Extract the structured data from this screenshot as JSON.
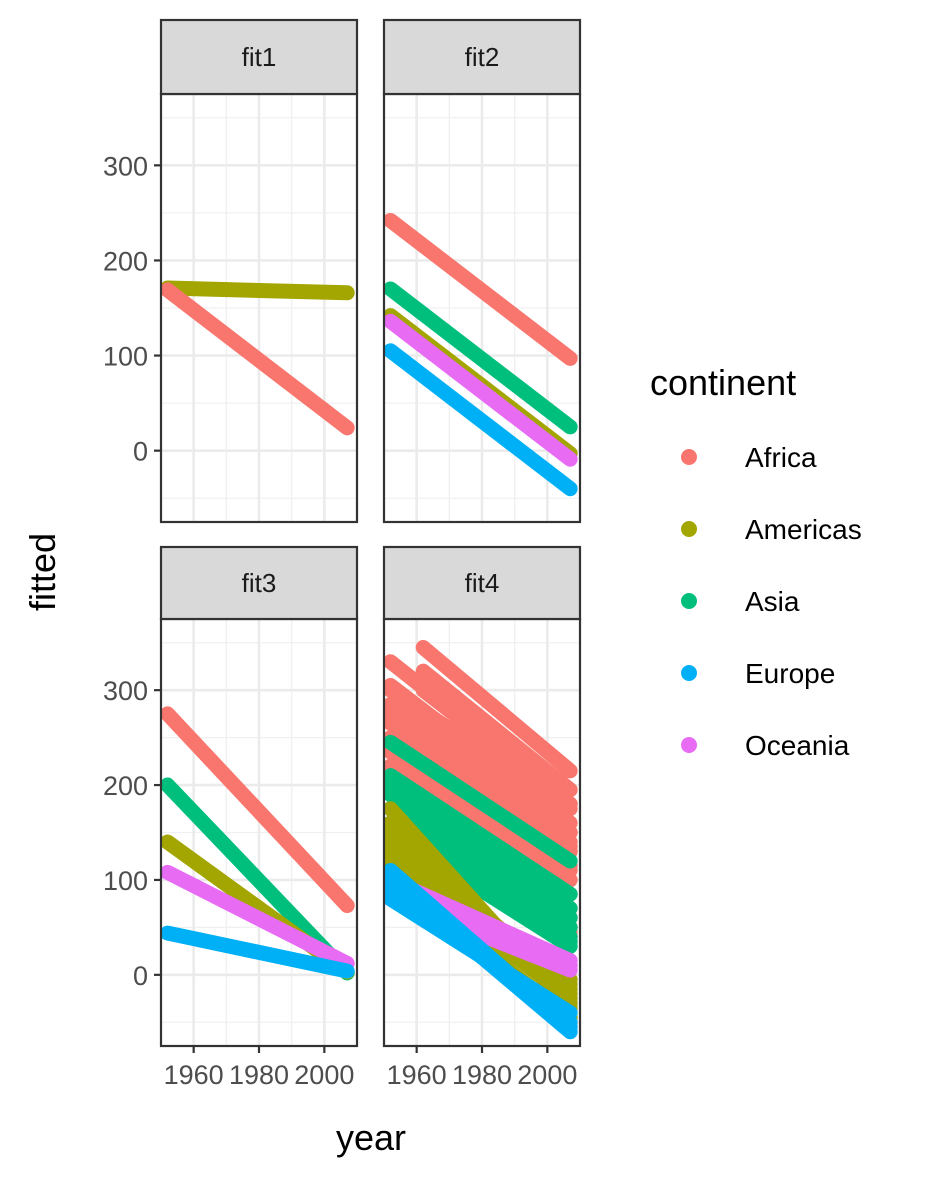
{
  "chart_data": {
    "type": "scatter",
    "xlabel": "year",
    "ylabel": "fitted",
    "xlim": [
      1950,
      2010
    ],
    "ylim": [
      -75,
      375
    ],
    "x_ticks": [
      1960,
      1980,
      2000
    ],
    "x_tick_labels": [
      "1960",
      "1980",
      "2000"
    ],
    "y_ticks": [
      0,
      100,
      200,
      300
    ],
    "y_tick_labels": [
      "0",
      "100",
      "200",
      "300"
    ],
    "grid": true,
    "facet_layout": "2x2",
    "legend": {
      "title": "continent",
      "position": "right",
      "entries": [
        {
          "name": "Africa",
          "color": "#F8766D"
        },
        {
          "name": "Americas",
          "color": "#A3A500"
        },
        {
          "name": "Asia",
          "color": "#00BF7D"
        },
        {
          "name": "Europe",
          "color": "#00B0F6"
        },
        {
          "name": "Oceania",
          "color": "#E76BF3"
        }
      ]
    },
    "x_range_data": [
      1952,
      2007
    ],
    "panels": [
      {
        "label": "fit1",
        "series": [
          {
            "continent": "Americas",
            "segments": [
              [
                171,
                166
              ]
            ]
          },
          {
            "continent": "Africa",
            "segments": [
              [
                169,
                24
              ]
            ]
          }
        ]
      },
      {
        "label": "fit2",
        "series": [
          {
            "continent": "Africa",
            "segments": [
              [
                242,
                97
              ]
            ]
          },
          {
            "continent": "Asia",
            "segments": [
              [
                170,
                25
              ]
            ]
          },
          {
            "continent": "Americas",
            "segments": [
              [
                142,
                -3
              ]
            ]
          },
          {
            "continent": "Oceania",
            "segments": [
              [
                136,
                -9
              ]
            ]
          },
          {
            "continent": "Europe",
            "segments": [
              [
                105,
                -40
              ]
            ]
          }
        ]
      },
      {
        "label": "fit3",
        "series": [
          {
            "continent": "Africa",
            "segments": [
              [
                275,
                73
              ]
            ]
          },
          {
            "continent": "Asia",
            "segments": [
              [
                200,
                2
              ]
            ]
          },
          {
            "continent": "Americas",
            "segments": [
              [
                140,
                3
              ]
            ]
          },
          {
            "continent": "Oceania",
            "segments": [
              [
                108,
                12
              ]
            ]
          },
          {
            "continent": "Europe",
            "segments": [
              [
                44,
                4
              ]
            ]
          }
        ]
      },
      {
        "label": "fit4",
        "series": [
          {
            "continent": "Africa",
            "segments": [
              [
                330,
                180
              ],
              [
                305,
                160
              ],
              [
                285,
                140
              ],
              [
                270,
                130
              ],
              [
                250,
                115
              ],
              [
                235,
                100
              ],
              [
                220,
                85
              ],
              [
                205,
                70
              ],
              [
                190,
                60
              ],
              [
                175,
                50
              ],
              [
                160,
                45
              ],
              [
                140,
                40
              ],
              [
                300,
                175
              ],
              [
                280,
                150
              ],
              [
                265,
                135
              ]
            ],
            "offset_segments": [
              [
                345,
                215
              ],
              [
                320,
                195
              ],
              [
                300,
                180
              ],
              [
                260,
                150
              ],
              [
                240,
                130
              ],
              [
                210,
                110
              ]
            ]
          },
          {
            "continent": "Asia",
            "segments": [
              [
                245,
                120
              ],
              [
                200,
                60
              ],
              [
                190,
                50
              ],
              [
                175,
                40
              ],
              [
                160,
                35
              ],
              [
                150,
                30
              ],
              [
                210,
                85
              ],
              [
                195,
                70
              ]
            ]
          },
          {
            "continent": "Americas",
            "segments": [
              [
                175,
                -35
              ],
              [
                160,
                -30
              ],
              [
                150,
                -20
              ],
              [
                140,
                -10
              ],
              [
                130,
                -5
              ],
              [
                120,
                -25
              ],
              [
                110,
                -50
              ],
              [
                100,
                -45
              ],
              [
                135,
                -15
              ]
            ]
          },
          {
            "continent": "Oceania",
            "segments": [
              [
                100,
                15
              ],
              [
                90,
                10
              ],
              [
                80,
                5
              ]
            ]
          },
          {
            "continent": "Europe",
            "segments": [
              [
                110,
                -55
              ],
              [
                100,
                -60
              ],
              [
                90,
                -50
              ],
              [
                80,
                -40
              ]
            ]
          }
        ]
      }
    ]
  }
}
